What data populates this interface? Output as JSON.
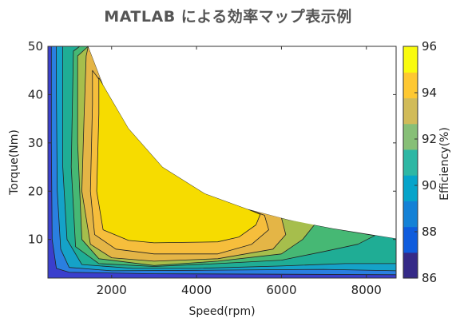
{
  "header": {
    "title": "MATLAB による効率マップ表示例"
  },
  "chart_data": {
    "type": "heatmap",
    "subtype": "filled-contour",
    "title": "MATLAB による効率マップ表示例",
    "xlabel": "Speed(rpm)",
    "ylabel": "Torque(Nm)",
    "colorbar_label": "Efficiency(%)",
    "xlim": [
      500,
      8700
    ],
    "ylim": [
      2,
      50
    ],
    "clim": [
      86,
      96
    ],
    "x_ticks": [
      2000,
      4000,
      6000,
      8000
    ],
    "y_ticks": [
      10,
      20,
      30,
      40,
      50
    ],
    "colorbar_ticks": [
      86,
      88,
      90,
      92,
      94,
      96
    ],
    "colormap": "parula",
    "max_torque_envelope": [
      {
        "x": 1450,
        "y": 50
      },
      {
        "x": 1800,
        "y": 42
      },
      {
        "x": 2400,
        "y": 33
      },
      {
        "x": 3200,
        "y": 25
      },
      {
        "x": 4200,
        "y": 19.5
      },
      {
        "x": 5200,
        "y": 16.3
      },
      {
        "x": 6200,
        "y": 14
      },
      {
        "x": 7200,
        "y": 12.3
      },
      {
        "x": 8700,
        "y": 10.2
      }
    ],
    "levels": [
      {
        "value": 86.5,
        "color": "#3a3fcd",
        "points": [
          [
            500,
            50
          ],
          [
            1000,
            50
          ],
          [
            1450,
            50
          ],
          [
            1800,
            42
          ],
          [
            2400,
            33
          ],
          [
            3200,
            25
          ],
          [
            4200,
            19.5
          ],
          [
            5200,
            16.3
          ],
          [
            6200,
            14
          ],
          [
            7200,
            12.3
          ],
          [
            8700,
            10.2
          ],
          [
            8700,
            2
          ],
          [
            500,
            2
          ]
        ]
      },
      {
        "value": 88,
        "color": "#2a7fe0",
        "points": [
          [
            580,
            50
          ],
          [
            1000,
            50
          ],
          [
            1450,
            50
          ],
          [
            1800,
            42
          ],
          [
            2400,
            33
          ],
          [
            3200,
            25
          ],
          [
            4200,
            19.5
          ],
          [
            5200,
            16.3
          ],
          [
            6200,
            14
          ],
          [
            7200,
            12.3
          ],
          [
            8700,
            10.2
          ],
          [
            8700,
            2.7
          ],
          [
            6000,
            2.8
          ],
          [
            3000,
            2.9
          ],
          [
            1000,
            3.2
          ],
          [
            700,
            4
          ],
          [
            600,
            10
          ],
          [
            580,
            30
          ]
        ]
      },
      {
        "value": 90,
        "color": "#15a2c8",
        "points": [
          [
            700,
            50
          ],
          [
            1000,
            50
          ],
          [
            1450,
            50
          ],
          [
            1800,
            42
          ],
          [
            2400,
            33
          ],
          [
            3200,
            25
          ],
          [
            4200,
            19.5
          ],
          [
            5200,
            16.3
          ],
          [
            6200,
            14
          ],
          [
            7200,
            12.3
          ],
          [
            8700,
            10.2
          ],
          [
            8700,
            3.5
          ],
          [
            7000,
            3.8
          ],
          [
            4000,
            3.6
          ],
          [
            2000,
            3.5
          ],
          [
            1000,
            4.2
          ],
          [
            800,
            8
          ],
          [
            720,
            20
          ],
          [
            700,
            40
          ]
        ]
      },
      {
        "value": 91,
        "color": "#1fad95",
        "points": [
          [
            850,
            50
          ],
          [
            1000,
            50
          ],
          [
            1450,
            50
          ],
          [
            1800,
            42
          ],
          [
            2400,
            33
          ],
          [
            3200,
            25
          ],
          [
            4200,
            19.5
          ],
          [
            5200,
            16.3
          ],
          [
            6200,
            14
          ],
          [
            7200,
            12.3
          ],
          [
            8700,
            10.2
          ],
          [
            8700,
            5
          ],
          [
            7500,
            5
          ],
          [
            6000,
            4.5
          ],
          [
            4000,
            4
          ],
          [
            2500,
            4
          ],
          [
            1300,
            4.8
          ],
          [
            950,
            10
          ],
          [
            850,
            25
          ]
        ]
      },
      {
        "value": 92,
        "color": "#46b874",
        "points": [
          [
            1100,
            49
          ],
          [
            1250,
            50
          ],
          [
            1450,
            50
          ],
          [
            1800,
            42
          ],
          [
            2400,
            33
          ],
          [
            3200,
            25
          ],
          [
            4200,
            19.5
          ],
          [
            5200,
            16.3
          ],
          [
            6200,
            14
          ],
          [
            7200,
            12.3
          ],
          [
            8200,
            10.8
          ],
          [
            7800,
            9
          ],
          [
            7000,
            7.5
          ],
          [
            6000,
            5.7
          ],
          [
            4500,
            5
          ],
          [
            3000,
            4.4
          ],
          [
            1700,
            5
          ],
          [
            1150,
            8.5
          ],
          [
            1050,
            25
          ]
        ]
      },
      {
        "value": 93,
        "color": "#a6be4c",
        "points": [
          [
            1200,
            48
          ],
          [
            1450,
            50
          ],
          [
            1800,
            42
          ],
          [
            2400,
            33
          ],
          [
            3200,
            25
          ],
          [
            4200,
            19.5
          ],
          [
            5200,
            16.3
          ],
          [
            6200,
            14
          ],
          [
            6800,
            13.3
          ],
          [
            6500,
            10
          ],
          [
            6000,
            7
          ],
          [
            4500,
            5.5
          ],
          [
            3000,
            4.6
          ],
          [
            1700,
            6
          ],
          [
            1300,
            10
          ],
          [
            1200,
            30
          ]
        ]
      },
      {
        "value": 94,
        "color": "#e4b546",
        "points": [
          [
            1400,
            48
          ],
          [
            1450,
            50
          ],
          [
            1800,
            42
          ],
          [
            2400,
            33
          ],
          [
            3200,
            25
          ],
          [
            4200,
            19.5
          ],
          [
            5200,
            16.3
          ],
          [
            6000,
            14.5
          ],
          [
            6100,
            11
          ],
          [
            5800,
            8
          ],
          [
            4500,
            6
          ],
          [
            3000,
            5.5
          ],
          [
            2000,
            6.2
          ],
          [
            1500,
            9
          ],
          [
            1300,
            20
          ],
          [
            1350,
            35
          ]
        ]
      },
      {
        "value": 95,
        "color": "#f6be3c",
        "points": [
          [
            1550,
            45
          ],
          [
            1800,
            42
          ],
          [
            2400,
            33
          ],
          [
            3200,
            25
          ],
          [
            4200,
            19.5
          ],
          [
            5200,
            16.3
          ],
          [
            5600,
            15
          ],
          [
            5700,
            12
          ],
          [
            5300,
            9
          ],
          [
            4500,
            7
          ],
          [
            3000,
            7
          ],
          [
            2100,
            8
          ],
          [
            1600,
            11
          ],
          [
            1500,
            20
          ],
          [
            1550,
            38
          ]
        ]
      },
      {
        "value": 96,
        "color": "#f6dc00",
        "points": [
          [
            1700,
            43.5
          ],
          [
            1800,
            42
          ],
          [
            2400,
            33
          ],
          [
            3200,
            25
          ],
          [
            4200,
            19.5
          ],
          [
            5200,
            16.3
          ],
          [
            5500,
            15.2
          ],
          [
            5400,
            13
          ],
          [
            5000,
            10.5
          ],
          [
            4500,
            9.5
          ],
          [
            3000,
            9.3
          ],
          [
            2400,
            9.8
          ],
          [
            1800,
            12
          ],
          [
            1650,
            20
          ],
          [
            1700,
            36
          ]
        ]
      }
    ]
  }
}
